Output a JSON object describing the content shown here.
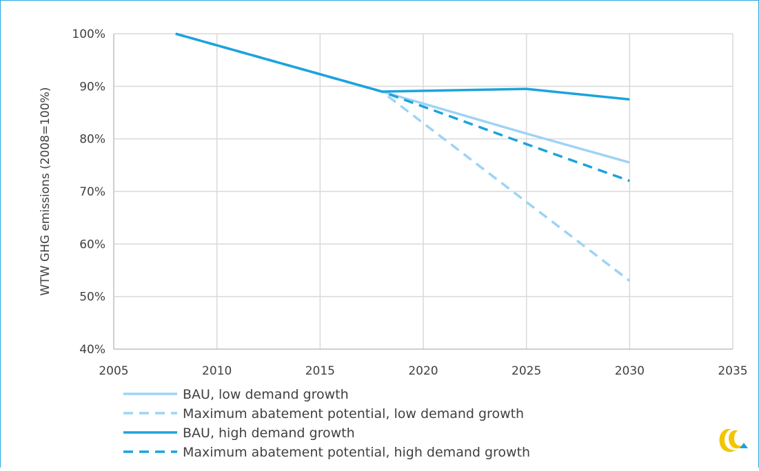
{
  "chart_data": {
    "type": "line",
    "title": "",
    "xlabel": "",
    "ylabel": "WTW GHG emissions (2008=100%)",
    "xlim": [
      2005,
      2035
    ],
    "ylim": [
      0.4,
      1.0
    ],
    "x_ticks": [
      2005,
      2010,
      2015,
      2020,
      2025,
      2030,
      2035
    ],
    "x_tick_labels": [
      "2005",
      "2010",
      "2015",
      "2020",
      "2025",
      "2030",
      "2035"
    ],
    "y_ticks": [
      0.4,
      0.5,
      0.6,
      0.7,
      0.8,
      0.9,
      1.0
    ],
    "y_tick_labels": [
      "40%",
      "50%",
      "60%",
      "70%",
      "80%",
      "90%",
      "100%"
    ],
    "grid": true,
    "legend_position": "bottom-left",
    "series": [
      {
        "name": "BAU, low demand growth",
        "color": "#9dd3f5",
        "dash": "solid",
        "points": [
          [
            2008,
            1.0
          ],
          [
            2018,
            0.89
          ],
          [
            2025,
            0.81
          ],
          [
            2030,
            0.755
          ]
        ]
      },
      {
        "name": "Maximum abatement potential, low demand growth",
        "color": "#9dd3f5",
        "dash": "dashed",
        "points": [
          [
            2008,
            1.0
          ],
          [
            2018,
            0.89
          ],
          [
            2025,
            0.68
          ],
          [
            2030,
            0.53
          ]
        ]
      },
      {
        "name": "BAU, high demand growth",
        "color": "#1ba3dc",
        "dash": "solid",
        "points": [
          [
            2008,
            1.0
          ],
          [
            2018,
            0.89
          ],
          [
            2025,
            0.895
          ],
          [
            2030,
            0.875
          ]
        ]
      },
      {
        "name": "Maximum abatement potential, high demand growth",
        "color": "#1ba3dc",
        "dash": "dashed",
        "points": [
          [
            2008,
            1.0
          ],
          [
            2018,
            0.89
          ],
          [
            2025,
            0.79
          ],
          [
            2030,
            0.72
          ]
        ]
      }
    ]
  },
  "logo": {
    "icon": "brand-logo-icon",
    "colors": [
      "#f2c500",
      "#1ba3dc"
    ]
  }
}
